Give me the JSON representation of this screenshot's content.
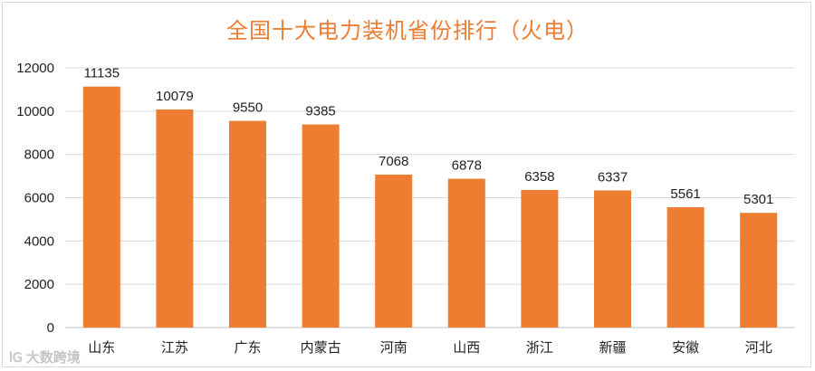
{
  "chart_data": {
    "type": "bar",
    "title": "全国十大电力装机省份排行（火电）",
    "categories": [
      "山东",
      "江苏",
      "广东",
      "内蒙古",
      "河南",
      "山西",
      "浙江",
      "新疆",
      "安徽",
      "河北"
    ],
    "values": [
      11135,
      10079,
      9550,
      9385,
      7068,
      6878,
      6358,
      6337,
      5561,
      5301
    ],
    "ylim": [
      0,
      12000
    ],
    "yticks": [
      0,
      2000,
      4000,
      6000,
      8000,
      10000,
      12000
    ],
    "grid": true,
    "bar_color": "#ed7d31",
    "xlabel": "",
    "ylabel": ""
  },
  "watermark": {
    "logo": "lG",
    "text": "大数跨境"
  }
}
